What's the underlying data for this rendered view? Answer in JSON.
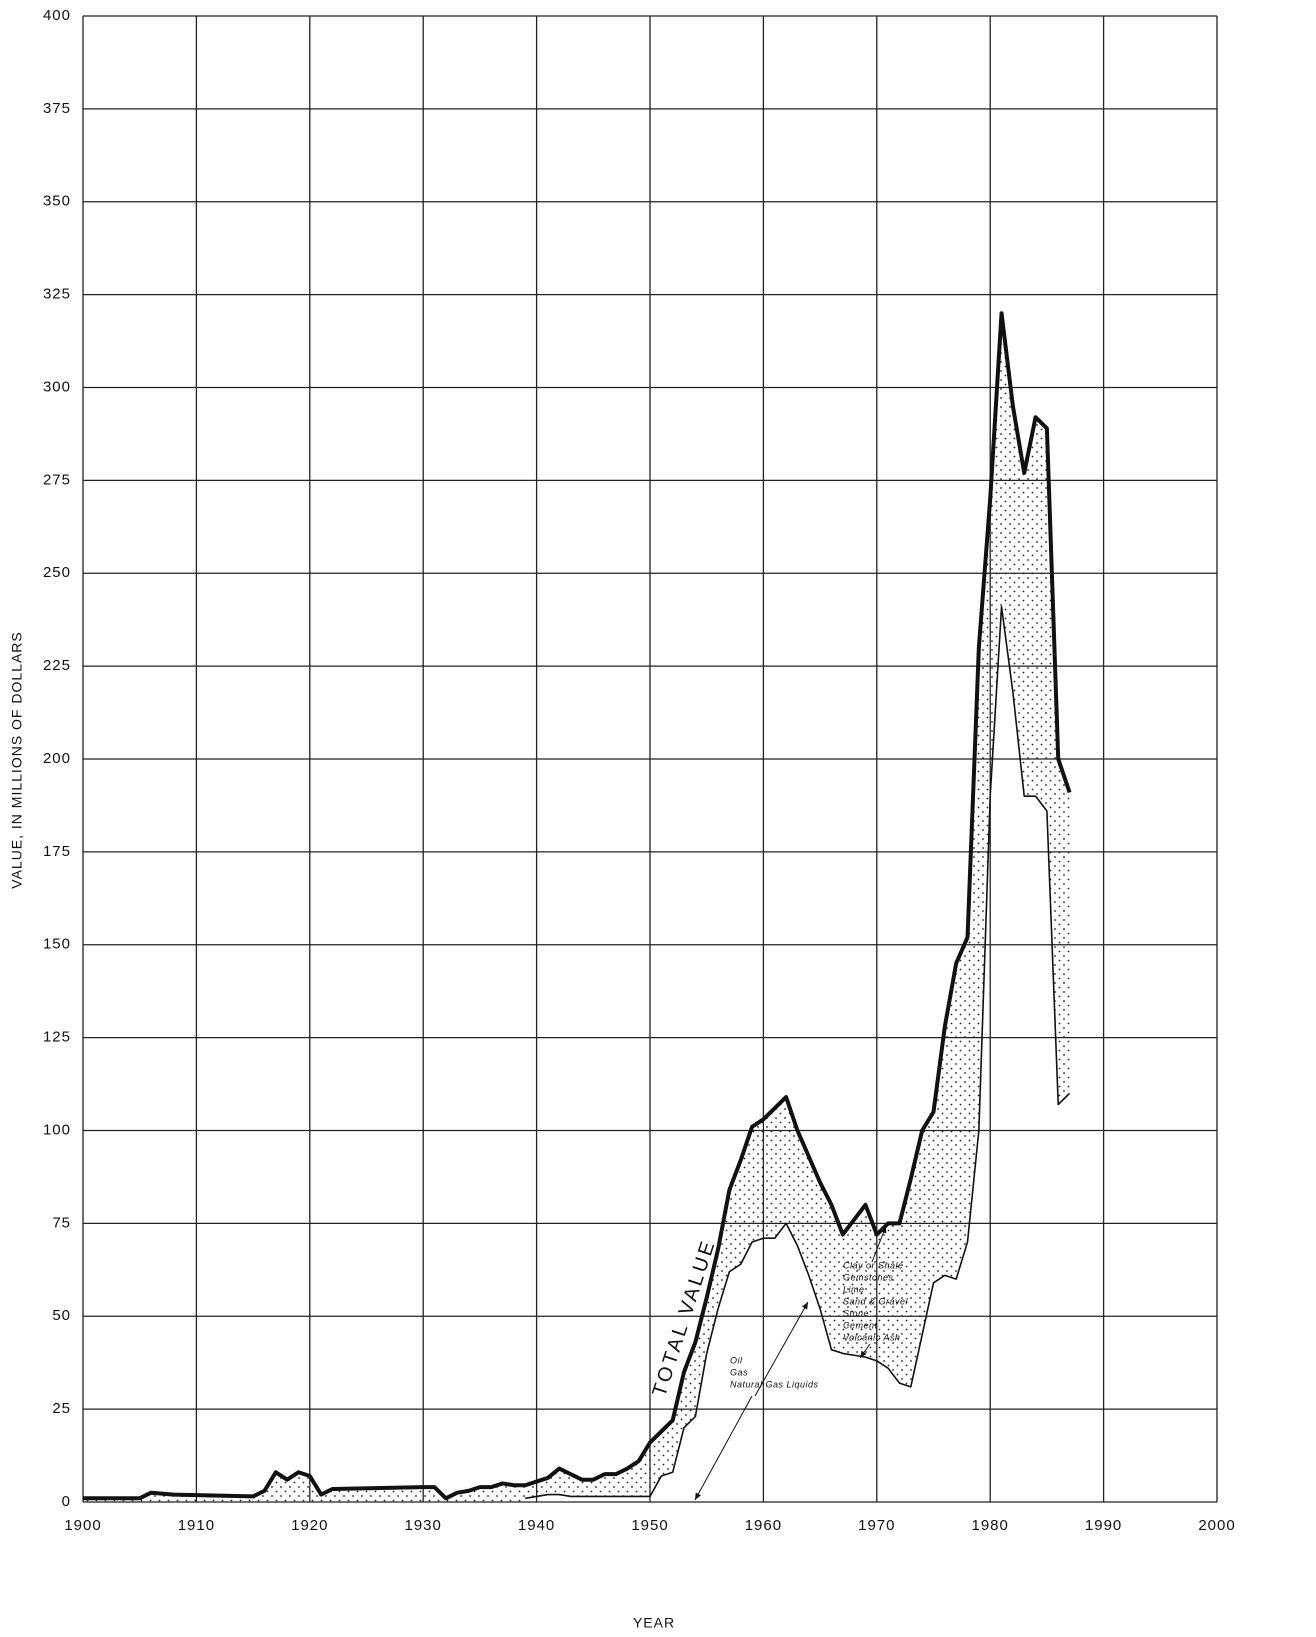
{
  "chart_data": {
    "type": "line",
    "xlabel": "YEAR",
    "ylabel": "VALUE, IN MILLIONS OF DOLLARS",
    "xlim": [
      1900,
      2000
    ],
    "xticks": [
      1900,
      1910,
      1920,
      1930,
      1940,
      1950,
      1960,
      1970,
      1980,
      1990,
      2000
    ],
    "ylim": [
      0,
      400
    ],
    "yticks": [
      0,
      25,
      50,
      75,
      100,
      125,
      150,
      175,
      200,
      225,
      250,
      275,
      300,
      325,
      350,
      375,
      400
    ],
    "grid": true,
    "series": [
      {
        "name": "TOTAL VALUE",
        "color": "#111111",
        "x": [
          1900,
          1905,
          1906,
          1908,
          1915,
          1916,
          1917,
          1918,
          1919,
          1920,
          1921,
          1922,
          1930,
          1931,
          1932,
          1933,
          1934,
          1935,
          1936,
          1937,
          1938,
          1939,
          1940,
          1941,
          1942,
          1943,
          1944,
          1945,
          1946,
          1947,
          1948,
          1949,
          1950,
          1951,
          1952,
          1953,
          1954,
          1955,
          1956,
          1957,
          1958,
          1959,
          1960,
          1961,
          1962,
          1963,
          1964,
          1965,
          1966,
          1967,
          1968,
          1969,
          1970,
          1971,
          1972,
          1973,
          1974,
          1975,
          1976,
          1977,
          1978,
          1979,
          1980,
          1981,
          1982,
          1983,
          1984,
          1985,
          1986,
          1987
        ],
        "values": [
          1,
          1,
          2.5,
          2,
          1.5,
          3,
          8,
          6,
          8,
          7,
          2,
          3.5,
          4,
          4,
          1,
          2.5,
          3,
          4,
          4,
          5,
          4.5,
          4.5,
          5.5,
          6.5,
          9,
          7.5,
          6,
          6,
          7.5,
          7.5,
          9,
          11,
          16,
          19,
          22,
          35,
          43,
          55,
          68,
          84,
          92,
          101,
          103,
          106,
          109,
          100,
          93,
          86,
          80,
          72,
          76,
          80,
          72,
          75,
          75,
          87,
          100,
          105,
          128,
          145,
          152,
          230,
          270,
          320,
          295,
          277,
          292,
          289,
          200,
          191
        ]
      },
      {
        "color": "#111111",
        "x": [
          1939,
          1940,
          1941,
          1942,
          1943,
          1944,
          1945,
          1946,
          1947,
          1948,
          1949,
          1950,
          1951,
          1952,
          1953,
          1954,
          1955,
          1956,
          1957,
          1958,
          1959,
          1960,
          1961,
          1962,
          1963,
          1964,
          1965,
          1966,
          1967,
          1968,
          1969,
          1970,
          1971,
          1972,
          1973,
          1974,
          1975,
          1976,
          1977,
          1978,
          1979,
          1980,
          1981,
          1982,
          1983,
          1984,
          1985,
          1986,
          1987
        ],
        "values": [
          1,
          1.5,
          2,
          2,
          1.5,
          1.5,
          1.5,
          1.5,
          1.5,
          1.5,
          1.5,
          1.5,
          7,
          8,
          20,
          23,
          40,
          52,
          62,
          64,
          70,
          71,
          71,
          75,
          69,
          61,
          52,
          41,
          40,
          39.5,
          39,
          38,
          36,
          32,
          31,
          45,
          59,
          61,
          60,
          70,
          100,
          190,
          241,
          218,
          190,
          190,
          186,
          107,
          110
        ]
      }
    ],
    "annotations": [
      {
        "lines": [
          "Oil",
          "Gas",
          "Natural Gas Liquids"
        ]
      },
      {
        "lines": [
          "Clay or Shale",
          "Gemstones",
          "Lime",
          "Sand & Gravel",
          "Stone",
          "Cement",
          "Volcanic Ash"
        ]
      }
    ]
  }
}
